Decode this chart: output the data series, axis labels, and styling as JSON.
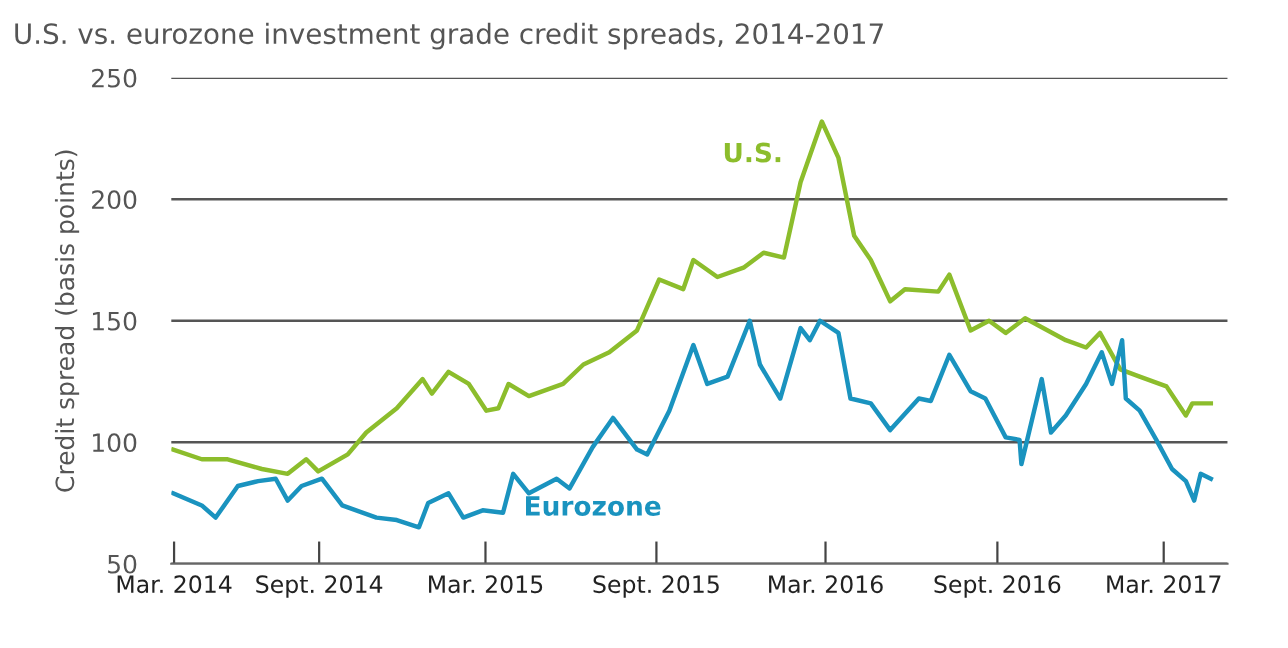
{
  "chart_data": {
    "type": "line",
    "title": "U.S. vs. eurozone investment grade credit spreads, 2014-2017",
    "ylabel": "Credit spread (basis points)",
    "ylim": [
      50,
      250
    ],
    "yticks": [
      50,
      100,
      150,
      200,
      250
    ],
    "xlim": [
      "2014-03-26",
      "2017-05-12"
    ],
    "xticks": [
      {
        "value": "2014-03-29",
        "label": "Mar. 2014"
      },
      {
        "value": "2014-09-02",
        "label": "Sept. 2014"
      },
      {
        "value": "2015-03-01",
        "label": "Mar. 2015"
      },
      {
        "value": "2015-09-02",
        "label": "Sept. 2015"
      },
      {
        "value": "2016-03-03",
        "label": "Mar. 2016"
      },
      {
        "value": "2016-09-05",
        "label": "Sept. 2016"
      },
      {
        "value": "2017-03-04",
        "label": "Mar. 2017"
      }
    ],
    "grid": "y",
    "legend": false,
    "line_style": "solid",
    "marker": "none",
    "series": [
      {
        "name": "U.S.",
        "color": "#8cbd2c",
        "x": [
          "2014-03-28",
          "2014-04-28",
          "2014-05-26",
          "2014-07-02",
          "2014-07-30",
          "2014-08-19",
          "2014-09-01",
          "2014-10-03",
          "2014-10-23",
          "2014-11-25",
          "2014-12-23",
          "2015-01-02",
          "2015-01-20",
          "2015-02-11",
          "2015-03-02",
          "2015-03-15",
          "2015-03-26",
          "2015-04-17",
          "2015-05-24",
          "2015-06-15",
          "2015-07-13",
          "2015-08-12",
          "2015-09-05",
          "2015-10-01",
          "2015-10-12",
          "2015-11-07",
          "2015-12-06",
          "2015-12-27",
          "2016-01-18",
          "2016-02-05",
          "2016-02-28",
          "2016-03-17",
          "2016-04-03",
          "2016-04-21",
          "2016-05-12",
          "2016-05-28",
          "2016-07-03",
          "2016-07-15",
          "2016-08-07",
          "2016-08-27",
          "2016-09-14",
          "2016-10-05",
          "2016-11-18",
          "2016-12-10",
          "2016-12-25",
          "2017-01-16",
          "2017-02-06",
          "2017-03-07",
          "2017-03-28",
          "2017-04-04",
          "2017-04-24"
        ],
        "values": [
          97,
          93,
          93,
          89,
          87,
          93,
          88,
          95,
          104,
          114,
          126,
          120,
          129,
          124,
          113,
          114,
          124,
          119,
          124,
          132,
          137,
          146,
          167,
          163,
          175,
          168,
          172,
          178,
          176,
          207,
          232,
          217,
          185,
          175,
          158,
          163,
          162,
          169,
          146,
          150,
          145,
          151,
          142,
          139,
          145,
          130,
          127,
          123,
          111,
          116,
          116
        ]
      },
      {
        "name": "Eurozone",
        "color": "#1a93bf",
        "x": [
          "2014-03-28",
          "2014-04-28",
          "2014-05-13",
          "2014-06-06",
          "2014-06-28",
          "2014-07-17",
          "2014-07-30",
          "2014-08-14",
          "2014-09-05",
          "2014-09-27",
          "2014-11-03",
          "2014-11-25",
          "2014-12-19",
          "2014-12-29",
          "2015-01-20",
          "2015-02-05",
          "2015-02-26",
          "2015-03-20",
          "2015-03-31",
          "2015-04-17",
          "2015-05-17",
          "2015-05-31",
          "2015-06-25",
          "2015-07-17",
          "2015-08-12",
          "2015-08-23",
          "2015-09-16",
          "2015-10-12",
          "2015-10-27",
          "2015-11-18",
          "2015-12-12",
          "2015-12-23",
          "2016-01-14",
          "2016-02-05",
          "2016-02-15",
          "2016-02-26",
          "2016-03-17",
          "2016-03-30",
          "2016-04-21",
          "2016-05-12",
          "2016-06-12",
          "2016-06-25",
          "2016-07-15",
          "2016-08-07",
          "2016-08-23",
          "2016-09-14",
          "2016-09-29",
          "2016-10-01",
          "2016-10-23",
          "2016-11-02",
          "2016-11-18",
          "2016-12-10",
          "2016-12-27",
          "2017-01-07",
          "2017-01-18",
          "2017-01-22",
          "2017-02-06",
          "2017-02-24",
          "2017-03-13",
          "2017-03-28",
          "2017-04-06",
          "2017-04-13",
          "2017-04-24"
        ],
        "values": [
          79,
          74,
          69,
          82,
          84,
          85,
          76,
          82,
          85,
          74,
          69,
          68,
          65,
          75,
          79,
          69,
          72,
          71,
          87,
          79,
          85,
          81,
          98,
          110,
          97,
          95,
          113,
          140,
          124,
          127,
          150,
          132,
          118,
          147,
          142,
          150,
          145,
          118,
          116,
          105,
          118,
          117,
          136,
          121,
          118,
          102,
          101,
          91,
          126,
          104,
          111,
          124,
          137,
          124,
          142,
          118,
          113,
          101,
          89,
          84,
          76,
          87,
          85
        ]
      }
    ]
  }
}
